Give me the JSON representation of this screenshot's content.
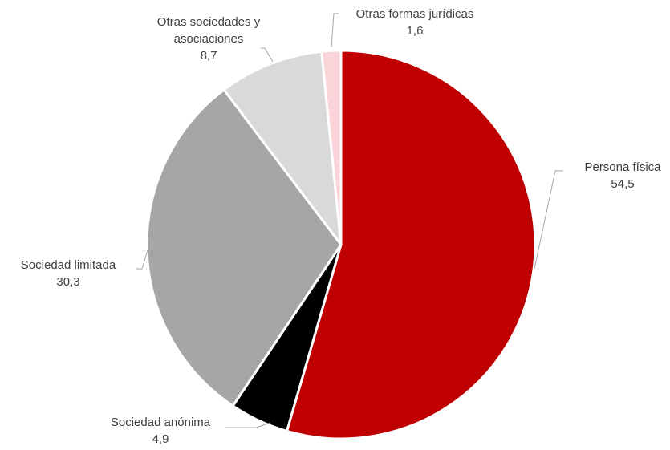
{
  "chart_data": {
    "type": "pie",
    "title": "",
    "categories": [
      "Persona física",
      "Sociedad anónima",
      "Sociedad limitada",
      "Otras sociedades y asociaciones",
      "Otras formas jurídicas"
    ],
    "values": [
      54.5,
      4.9,
      30.3,
      8.7,
      1.6
    ],
    "value_labels": [
      "54,5",
      "4,9",
      "30,3",
      "8,7",
      "1,6"
    ],
    "label_lines": [
      [
        "Persona física"
      ],
      [
        "Sociedad anónima"
      ],
      [
        "Sociedad limitada"
      ],
      [
        "Otras sociedades y",
        "asociaciones"
      ],
      [
        "Otras formas jurídicas"
      ]
    ],
    "colors": [
      "#c00000",
      "#000000",
      "#a6a6a6",
      "#d9d9d9",
      "#fad4d9"
    ],
    "start_angle": "12 o'clock",
    "direction": "clockwise",
    "legend": "none, labels outside with leader lines"
  }
}
